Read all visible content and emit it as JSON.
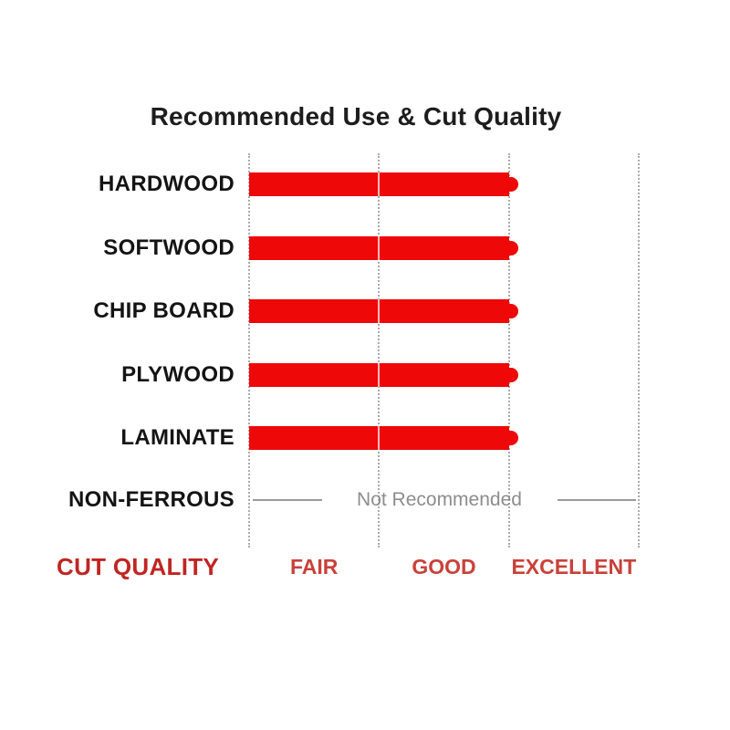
{
  "chart_data": {
    "type": "bar",
    "orientation": "horizontal",
    "title": "Recommended Use & Cut Quality",
    "categories": [
      "HARDWOOD",
      "SOFTWOOD",
      "CHIP BOARD",
      "PLYWOOD",
      "LAMINATE",
      "NON-FERROUS"
    ],
    "scale": [
      "FAIR",
      "GOOD",
      "EXCELLENT"
    ],
    "axis_label": "CUT QUALITY",
    "series": [
      {
        "name": "cut-quality-rating",
        "values": [
          "EXCELLENT",
          "EXCELLENT",
          "EXCELLENT",
          "EXCELLENT",
          "EXCELLENT",
          "NOT RECOMMENDED"
        ]
      }
    ],
    "numeric_values": [
      3,
      3,
      3,
      3,
      3,
      null
    ],
    "value_range": [
      0,
      3
    ],
    "annotations": [
      {
        "row": "NON-FERROUS",
        "text": "Not Recommended"
      }
    ],
    "grid": "vertical-dotted",
    "legend": "none"
  },
  "colors": {
    "bar_red": "#ee0808",
    "title_black": "#1d1d1d",
    "label_black": "#141414",
    "cut_quality_red": "#c02522",
    "tick_red": "#c9413a",
    "gray_text": "#8d8d8d",
    "gridline_gray": "#ababab",
    "line_gray": "#9a9a9a",
    "bg_white": "#ffffff"
  }
}
